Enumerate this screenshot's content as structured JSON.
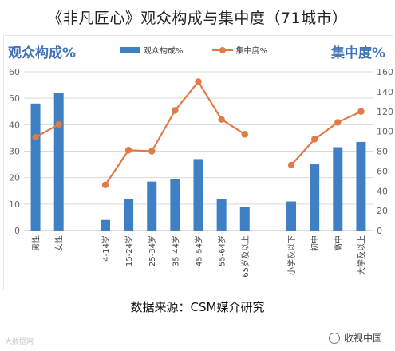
{
  "title": "《非凡匠心》观众构成与集中度（71城市）",
  "left_axis_title": "观众构成%",
  "right_axis_title": "集中度%",
  "source": "数据来源：CSM媒介研究",
  "watermark_left": "大数据网",
  "watermark_right": "收视中国",
  "colors": {
    "bar": "#3f7fc4",
    "line": "#e07b45",
    "axis_title": "#3f73b6"
  },
  "chart_data": {
    "type": "bar",
    "categories": [
      "男性",
      "女性",
      "",
      "4-14岁",
      "15-24岁",
      "25-34岁",
      "35-44岁",
      "45-54岁",
      "55-64岁",
      "65岁及以上",
      "",
      "小学及以下",
      "初中",
      "高中",
      "大学及以上"
    ],
    "series": [
      {
        "name": "观众构成%",
        "type": "bar",
        "axis": "left",
        "values": [
          48,
          52,
          null,
          4,
          12,
          18.5,
          19.5,
          27,
          12,
          9,
          null,
          11,
          25,
          31.5,
          33.5
        ]
      },
      {
        "name": "集中度%",
        "type": "line",
        "axis": "right",
        "values": [
          94,
          107,
          null,
          46,
          81,
          80,
          121,
          150,
          112,
          97,
          null,
          66,
          92,
          109,
          120
        ]
      }
    ],
    "y_left": {
      "min": 0,
      "max": 60,
      "ticks": [
        0,
        10,
        20,
        30,
        40,
        50,
        60
      ]
    },
    "y_right": {
      "min": 0,
      "max": 160,
      "ticks": [
        0,
        20,
        40,
        60,
        80,
        100,
        120,
        140,
        160
      ]
    },
    "grid": true,
    "legend": "top"
  }
}
